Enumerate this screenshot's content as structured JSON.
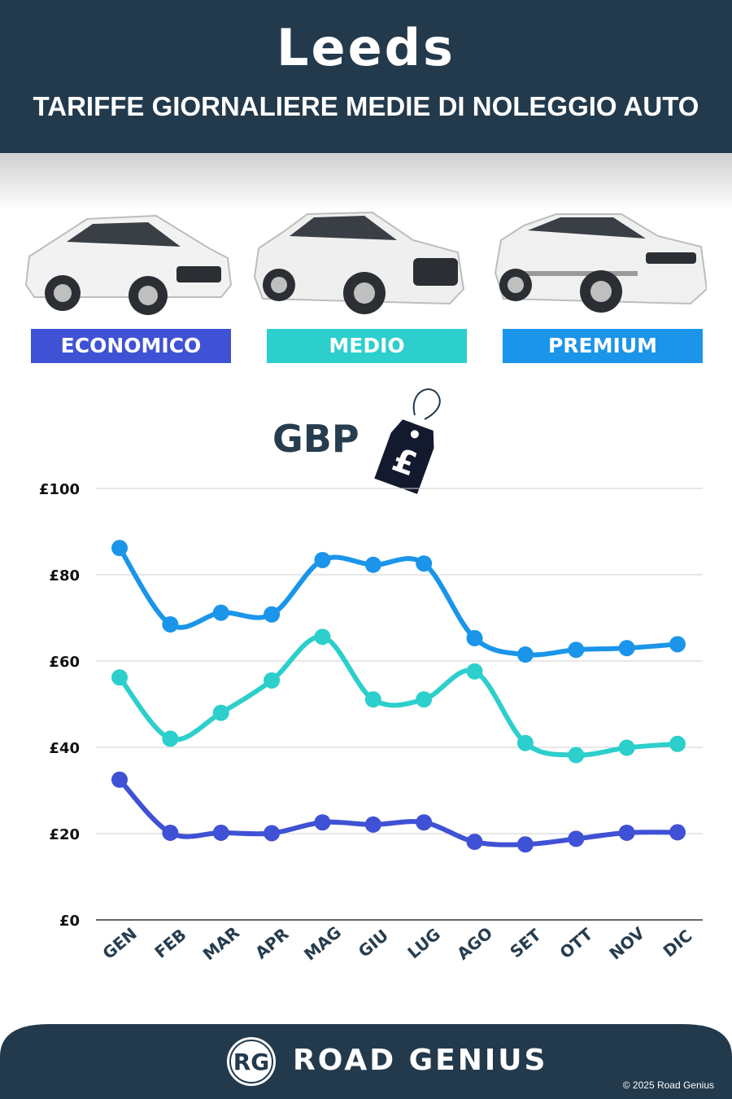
{
  "header": {
    "city": "Leeds",
    "subtitle": "TARIFFE GIORNALIERE MEDIE DI NOLEGGIO AUTO"
  },
  "categories_labels": {
    "economy": "ECONOMICO",
    "mid": "MEDIO",
    "premium": "PREMIUM"
  },
  "currency": {
    "label": "GBP",
    "tag_symbol": "£"
  },
  "footer": {
    "logo_text": "RG",
    "brand": "ROAD GENIUS",
    "copyright": "© 2025 Road Genius"
  },
  "colors": {
    "header_bg": "#233a4d",
    "economy": "#3f51d4",
    "mid": "#2ccfcb",
    "premium": "#1a95ea"
  },
  "chart_data": {
    "type": "line",
    "categories": [
      "GEN",
      "FEB",
      "MAR",
      "APR",
      "MAG",
      "GIU",
      "LUG",
      "AGO",
      "SET",
      "OTT",
      "NOV",
      "DIC"
    ],
    "ylim": [
      0,
      100
    ],
    "yticks": [
      0,
      20,
      40,
      60,
      80,
      100
    ],
    "ytick_labels": [
      "£0",
      "£20",
      "£40",
      "£60",
      "£80",
      "£100"
    ],
    "grid": true,
    "series": [
      {
        "name": "PREMIUM",
        "color": "#1a95ea",
        "values": [
          86.2,
          68.5,
          71.2,
          70.8,
          83.4,
          82.3,
          82.6,
          65.3,
          61.5,
          62.6,
          63.0,
          63.9
        ]
      },
      {
        "name": "MEDIO",
        "color": "#2ccfcb",
        "values": [
          56.2,
          42.0,
          48.0,
          55.5,
          65.6,
          51.1,
          51.1,
          57.6,
          41.0,
          38.2,
          39.9,
          40.8
        ]
      },
      {
        "name": "ECONOMICO",
        "color": "#3f51d4",
        "values": [
          32.5,
          20.2,
          20.2,
          20.1,
          22.6,
          22.1,
          22.6,
          18.1,
          17.5,
          18.8,
          20.2,
          20.3
        ]
      }
    ]
  }
}
